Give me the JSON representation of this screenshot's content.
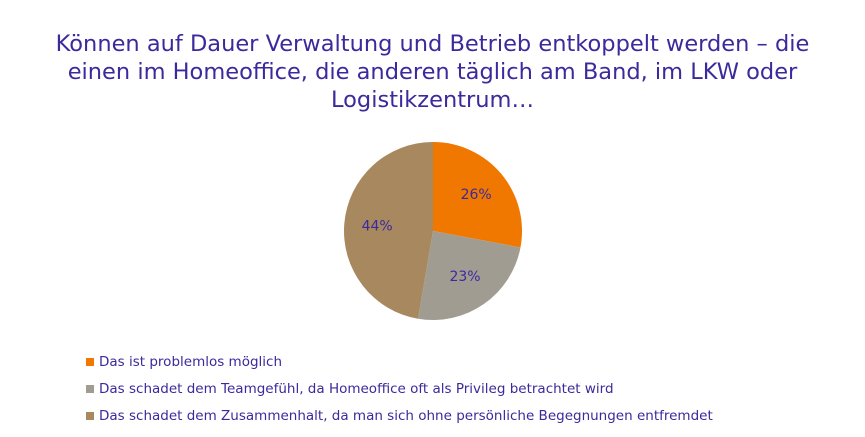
{
  "chart_data": {
    "type": "pie",
    "title_lines": [
      "Können auf Dauer Verwaltung und Betrieb entkoppelt werden – die",
      "einen im Homeoffice, die anderen täglich am Band, im LKW oder",
      "Logistikzentrum…"
    ],
    "categories": [
      "Das ist problemlos möglich",
      "Das schadet dem Teamgefühl, da Homeoffice oft als Privileg betrachtet wird",
      "Das schadet dem Zusammenhalt, da man sich ohne persönliche Begegnungen entfremdet"
    ],
    "values": [
      26,
      23,
      44
    ],
    "data_labels": [
      "26%",
      "23%",
      "44%"
    ],
    "colors": [
      "#f07800",
      "#a19c92",
      "#a8895f"
    ],
    "legend_position": "bottom-left"
  },
  "style": {
    "text_color": "#3b2a9c"
  }
}
